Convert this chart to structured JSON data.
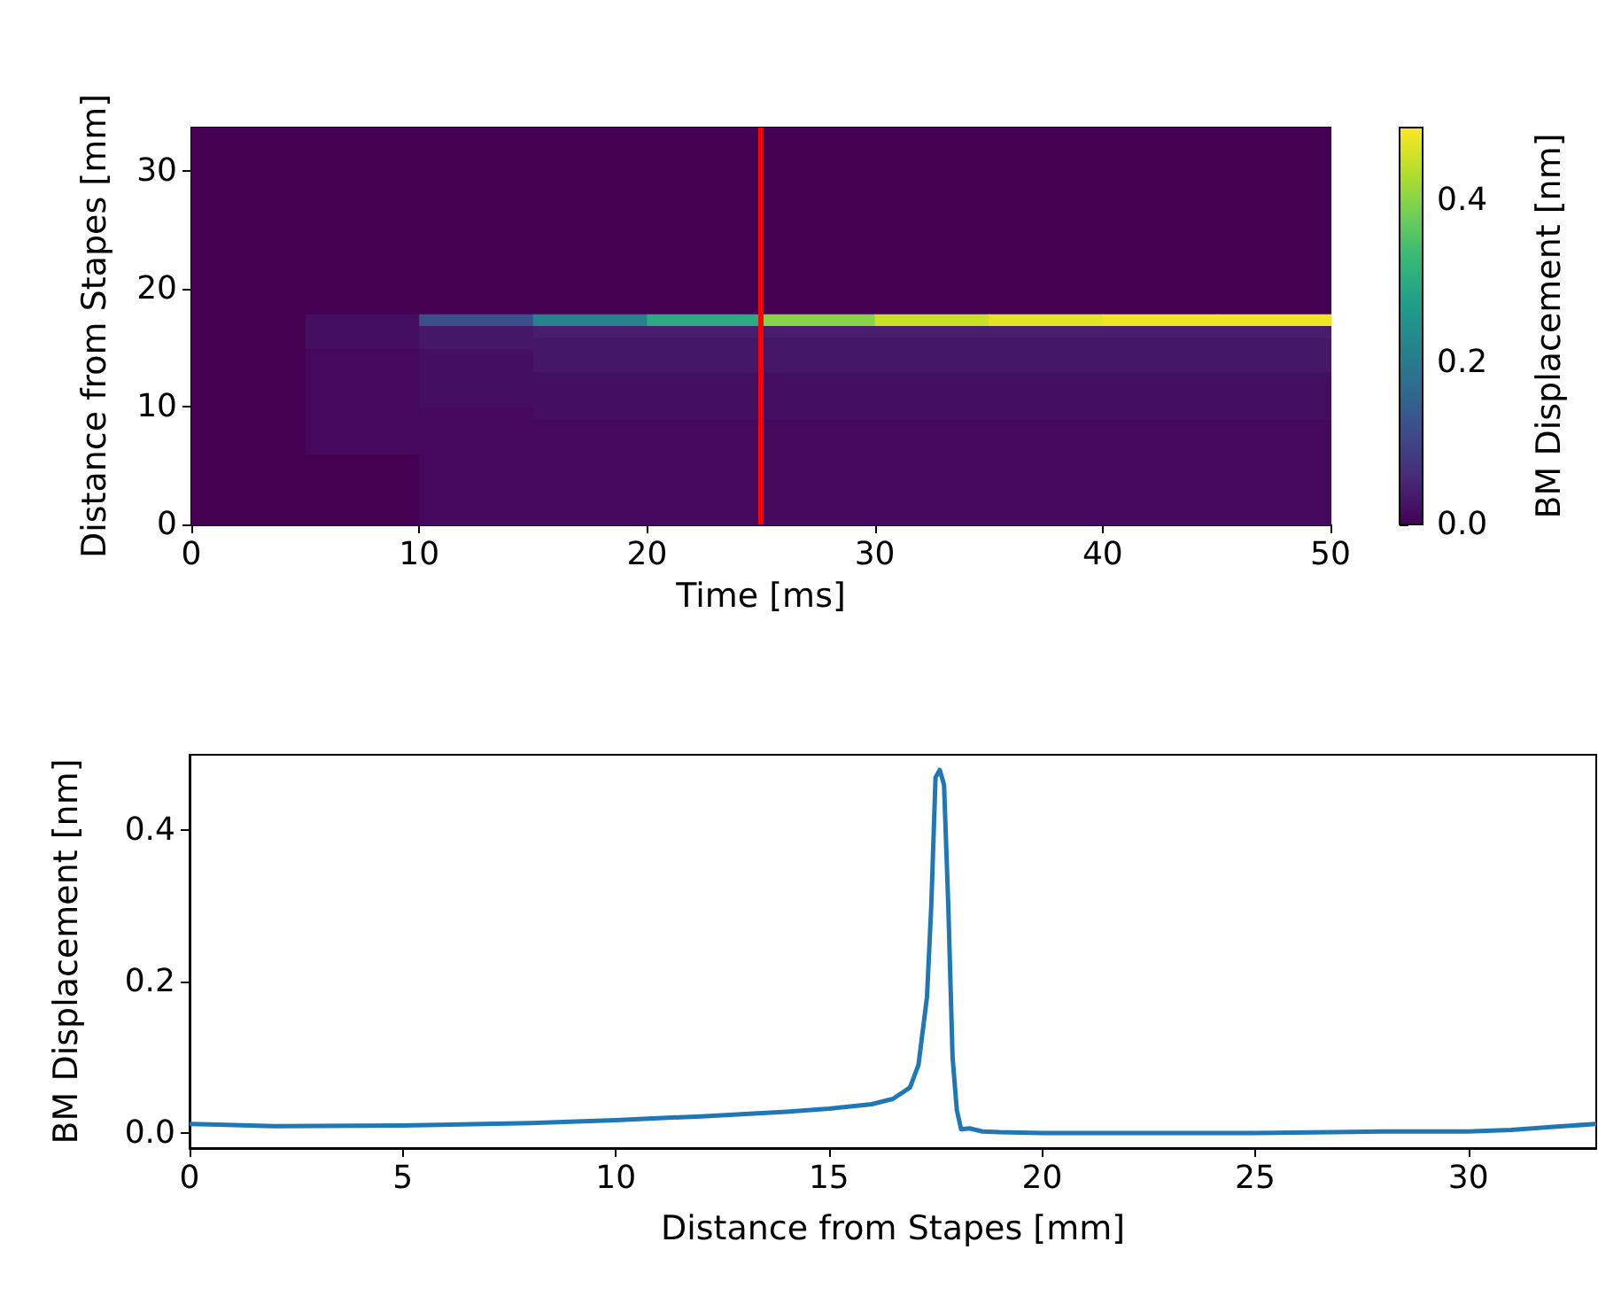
{
  "chart_data": [
    {
      "type": "heatmap",
      "xlabel": "Time [ms]",
      "ylabel": "Distance from Stapes [mm]",
      "clabel": "BM Displacement [nm]",
      "x": [
        2.5,
        7.5,
        12.5,
        17.5,
        22.5,
        27.5,
        32.5,
        37.5,
        42.5,
        47.5
      ],
      "cells": [
        [
          0,
          0,
          0,
          0,
          0,
          0,
          0,
          0,
          0,
          0
        ],
        [
          0,
          0,
          0,
          0,
          0,
          0,
          0,
          0,
          0,
          0
        ],
        [
          0,
          0,
          0,
          0,
          0,
          0,
          0,
          0,
          0,
          0
        ],
        [
          0,
          0,
          0,
          0,
          0,
          0,
          0,
          0,
          0,
          0
        ],
        [
          0,
          0,
          0,
          0,
          0,
          0,
          0,
          0,
          0,
          0
        ],
        [
          0,
          0,
          0,
          0,
          0,
          0,
          0,
          0,
          0,
          0
        ],
        [
          0,
          0,
          0,
          0,
          0,
          0,
          0,
          0,
          0,
          0
        ],
        [
          0,
          0,
          0,
          0,
          0,
          0,
          0,
          0,
          0,
          0
        ],
        [
          0,
          0,
          0,
          0,
          0,
          0,
          0,
          0,
          0,
          0
        ],
        [
          0,
          0,
          0,
          0,
          0,
          0,
          0,
          0,
          0,
          0
        ],
        [
          0,
          0,
          0,
          0,
          0,
          0,
          0,
          0,
          0,
          0
        ],
        [
          0,
          0,
          0,
          0,
          0,
          0,
          0,
          0,
          0,
          0
        ],
        [
          0,
          0,
          0,
          0,
          0,
          0,
          0,
          0,
          0,
          0
        ],
        [
          0,
          0,
          0,
          0,
          0,
          0,
          0,
          0,
          0,
          0
        ],
        [
          0,
          0,
          0,
          0,
          0,
          0,
          0,
          0,
          0,
          0
        ],
        [
          0,
          0,
          0,
          0,
          0,
          0,
          0,
          0,
          0,
          0
        ],
        [
          0,
          0.02,
          0.12,
          0.22,
          0.3,
          0.4,
          0.45,
          0.47,
          0.48,
          0.48
        ],
        [
          0,
          0.02,
          0.03,
          0.04,
          0.04,
          0.04,
          0.04,
          0.04,
          0.04,
          0.04
        ],
        [
          0,
          0.02,
          0.03,
          0.03,
          0.03,
          0.03,
          0.03,
          0.03,
          0.03,
          0.03
        ],
        [
          0,
          0.01,
          0.02,
          0.03,
          0.03,
          0.03,
          0.03,
          0.03,
          0.03,
          0.03
        ],
        [
          0,
          0.01,
          0.02,
          0.03,
          0.03,
          0.03,
          0.03,
          0.03,
          0.03,
          0.03
        ],
        [
          0,
          0.01,
          0.02,
          0.02,
          0.02,
          0.02,
          0.02,
          0.02,
          0.02,
          0.02
        ],
        [
          0,
          0.01,
          0.02,
          0.02,
          0.02,
          0.02,
          0.02,
          0.02,
          0.02,
          0.02
        ],
        [
          0,
          0.01,
          0.02,
          0.02,
          0.02,
          0.02,
          0.02,
          0.02,
          0.02,
          0.02
        ],
        [
          0,
          0.01,
          0.01,
          0.02,
          0.02,
          0.02,
          0.02,
          0.02,
          0.02,
          0.02
        ],
        [
          0,
          0.01,
          0.01,
          0.01,
          0.01,
          0.01,
          0.01,
          0.01,
          0.01,
          0.01
        ],
        [
          0,
          0.01,
          0.01,
          0.01,
          0.01,
          0.01,
          0.01,
          0.01,
          0.01,
          0.01
        ],
        [
          0,
          0.01,
          0.01,
          0.01,
          0.01,
          0.01,
          0.01,
          0.01,
          0.01,
          0.01
        ],
        [
          0,
          0,
          0.01,
          0.01,
          0.01,
          0.01,
          0.01,
          0.01,
          0.01,
          0.01
        ],
        [
          0,
          0,
          0.01,
          0.01,
          0.01,
          0.01,
          0.01,
          0.01,
          0.01,
          0.01
        ],
        [
          0,
          0,
          0.01,
          0.01,
          0.01,
          0.01,
          0.01,
          0.01,
          0.01,
          0.01
        ],
        [
          0,
          0,
          0.01,
          0.01,
          0.01,
          0.01,
          0.01,
          0.01,
          0.01,
          0.01
        ],
        [
          0,
          0,
          0.01,
          0.01,
          0.01,
          0.01,
          0.01,
          0.01,
          0.01,
          0.01
        ],
        [
          0,
          0,
          0.01,
          0.01,
          0.01,
          0.01,
          0.01,
          0.01,
          0.01,
          0.01
        ]
      ],
      "xlim": [
        0,
        50
      ],
      "xticks": [
        0,
        10,
        20,
        30,
        40,
        50
      ],
      "ylim": [
        0,
        33.7
      ],
      "yticks": [
        0,
        10,
        20,
        30
      ],
      "clim": [
        0,
        0.49
      ],
      "cticks": [
        {
          "value": 0,
          "label": "0.0"
        },
        {
          "value": 0.2,
          "label": "0.2"
        },
        {
          "value": 0.4,
          "label": "0.4"
        }
      ],
      "ref_lines": [
        {
          "axis": "x",
          "value": 25,
          "color": "#ff0000"
        }
      ],
      "grid": false
    },
    {
      "type": "line",
      "xlabel": "Distance from Stapes [mm]",
      "ylabel": "BM Displacement [nm]",
      "marker": "none",
      "line_style": "solid",
      "grid": false,
      "series": [
        {
          "color": "#1f77b4",
          "x": [
            0,
            2,
            5,
            8,
            10,
            12,
            14,
            15,
            16,
            16.5,
            16.9,
            17.1,
            17.3,
            17.4,
            17.5,
            17.6,
            17.7,
            17.8,
            17.9,
            18.0,
            18.1,
            18.3,
            18.6,
            19,
            20,
            25,
            28,
            30,
            31,
            32,
            33
          ],
          "values": [
            0.012,
            0.009,
            0.01,
            0.013,
            0.017,
            0.022,
            0.028,
            0.032,
            0.038,
            0.045,
            0.06,
            0.09,
            0.18,
            0.3,
            0.47,
            0.48,
            0.46,
            0.3,
            0.1,
            0.03,
            0.005,
            0.006,
            0.002,
            0.001,
            0,
            0,
            0.002,
            0.002,
            0.004,
            0.008,
            0.012
          ]
        }
      ],
      "xlim": [
        0,
        33
      ],
      "xticks": [
        0,
        5,
        10,
        15,
        20,
        25,
        30
      ],
      "ylim": [
        -0.02,
        0.5
      ],
      "yticks": [
        {
          "value": 0,
          "label": "0.0"
        },
        {
          "value": 0.2,
          "label": "0.2"
        },
        {
          "value": 0.4,
          "label": "0.4"
        }
      ]
    }
  ]
}
